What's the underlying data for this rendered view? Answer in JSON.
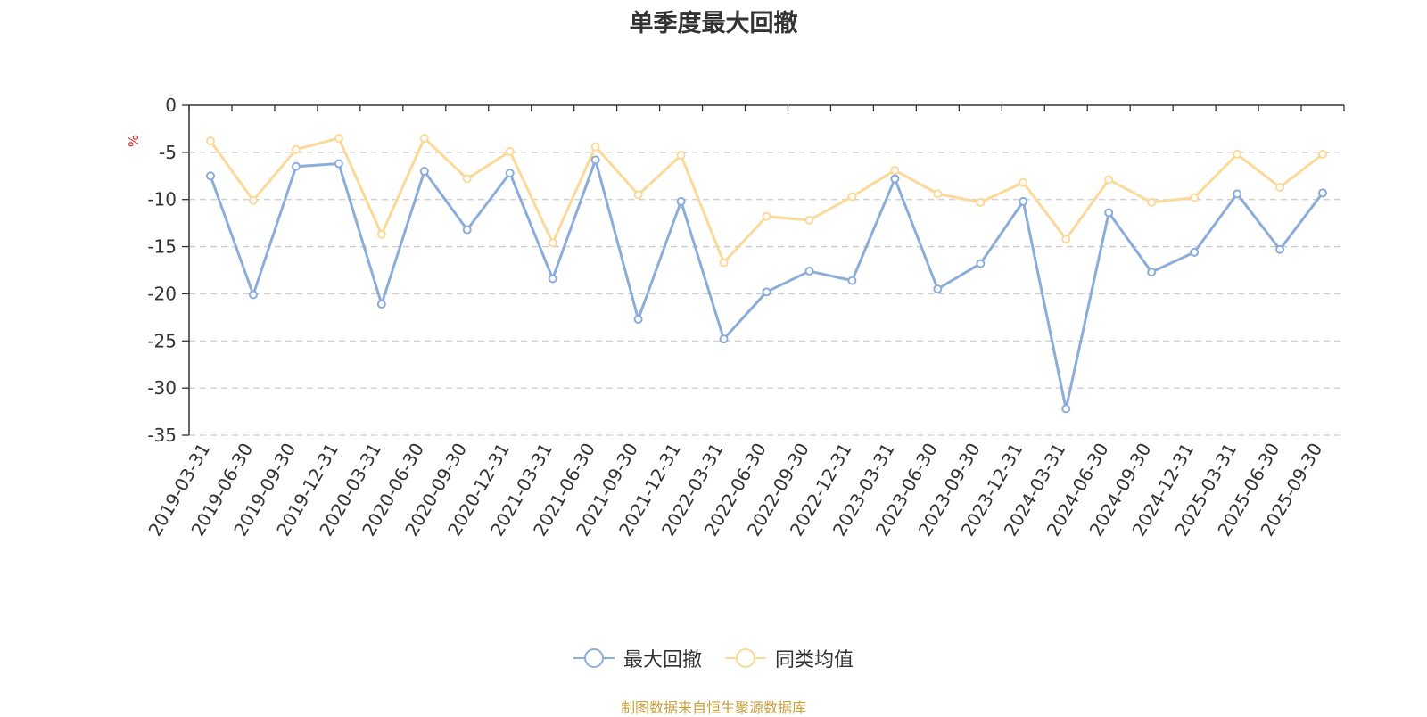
{
  "chart_data": {
    "type": "line",
    "title": "单季度最大回撤",
    "ylabel": "%",
    "ylim": [
      -35,
      0
    ],
    "yticks": [
      0,
      -5,
      -10,
      -15,
      -20,
      -25,
      -30,
      -35
    ],
    "grid": "horizontal-dashed",
    "legend_position": "bottom",
    "x": [
      "2019-03-31",
      "2019-06-30",
      "2019-09-30",
      "2019-12-31",
      "2020-03-31",
      "2020-06-30",
      "2020-09-30",
      "2020-12-31",
      "2021-03-31",
      "2021-06-30",
      "2021-09-30",
      "2021-12-31",
      "2022-03-31",
      "2022-06-30",
      "2022-09-30",
      "2022-12-31",
      "2023-03-31",
      "2023-06-30",
      "2023-09-30",
      "2023-12-31",
      "2024-03-31",
      "2024-06-30",
      "2024-09-30",
      "2024-12-31",
      "2025-03-31",
      "2025-06-30",
      "2025-09-30"
    ],
    "series": [
      {
        "name": "最大回撤",
        "color": "#8cadd9",
        "values": [
          -7.5,
          -20.1,
          -6.5,
          -6.2,
          -21.1,
          -7.0,
          -13.2,
          -7.2,
          -18.4,
          -5.8,
          -22.7,
          -10.2,
          -24.8,
          -19.8,
          -17.6,
          -18.6,
          -7.8,
          -19.5,
          -16.8,
          -10.2,
          -32.2,
          -11.4,
          -17.7,
          -15.6,
          -9.4,
          -15.3,
          -9.3
        ]
      },
      {
        "name": "同类均值",
        "color": "#fbd999",
        "values": [
          -3.8,
          -10.1,
          -4.7,
          -3.5,
          -13.7,
          -3.5,
          -7.8,
          -4.9,
          -14.6,
          -4.4,
          -9.5,
          -5.3,
          -16.7,
          -11.8,
          -12.2,
          -9.7,
          -6.9,
          -9.4,
          -10.3,
          -8.2,
          -14.2,
          -7.9,
          -10.3,
          -9.8,
          -5.2,
          -8.7,
          -5.2
        ]
      }
    ],
    "source": "制图数据来自恒生聚源数据库"
  }
}
